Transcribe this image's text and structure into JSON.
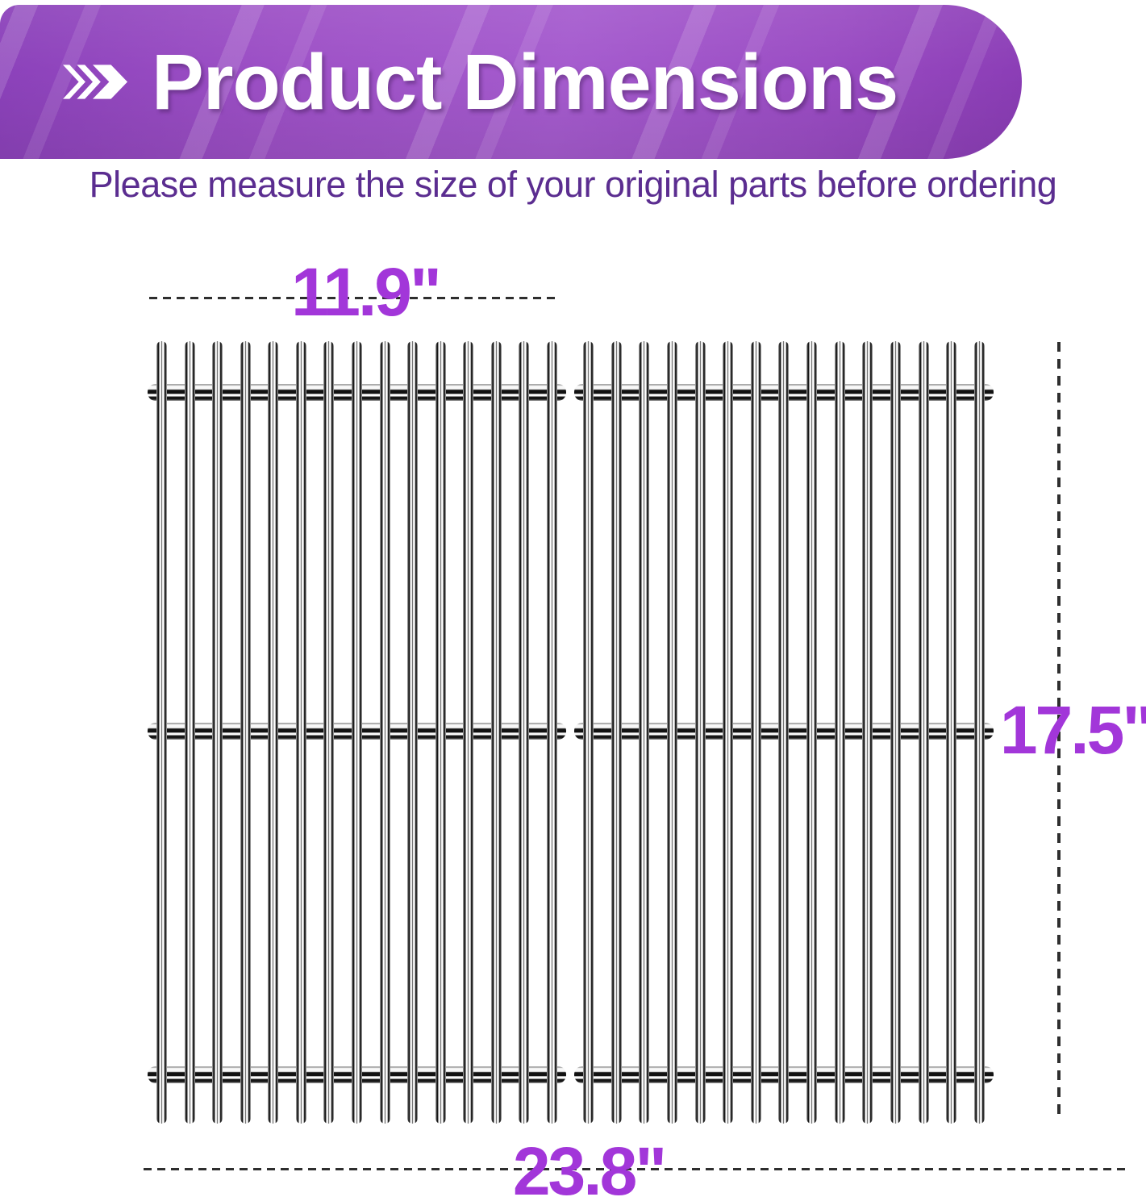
{
  "header": {
    "title": "Product Dimensions",
    "icon": "chevrons-right-icon"
  },
  "subtitle": {
    "text": "Please measure the size of your original parts before ordering"
  },
  "diagram": {
    "grate_width_label": "11.9\"",
    "grate_height_label": "17.5\"",
    "total_width_label": "23.8\"",
    "grate_count": 2,
    "rods_per_grate": 15,
    "crossbars_per_grate": 3
  },
  "colors": {
    "banner_purple": "#9d50c6",
    "label_purple": "#a236d9",
    "subtitle_purple": "#5b2d90",
    "dash_gray": "#2e2e2e",
    "title_white": "#ffffff"
  }
}
